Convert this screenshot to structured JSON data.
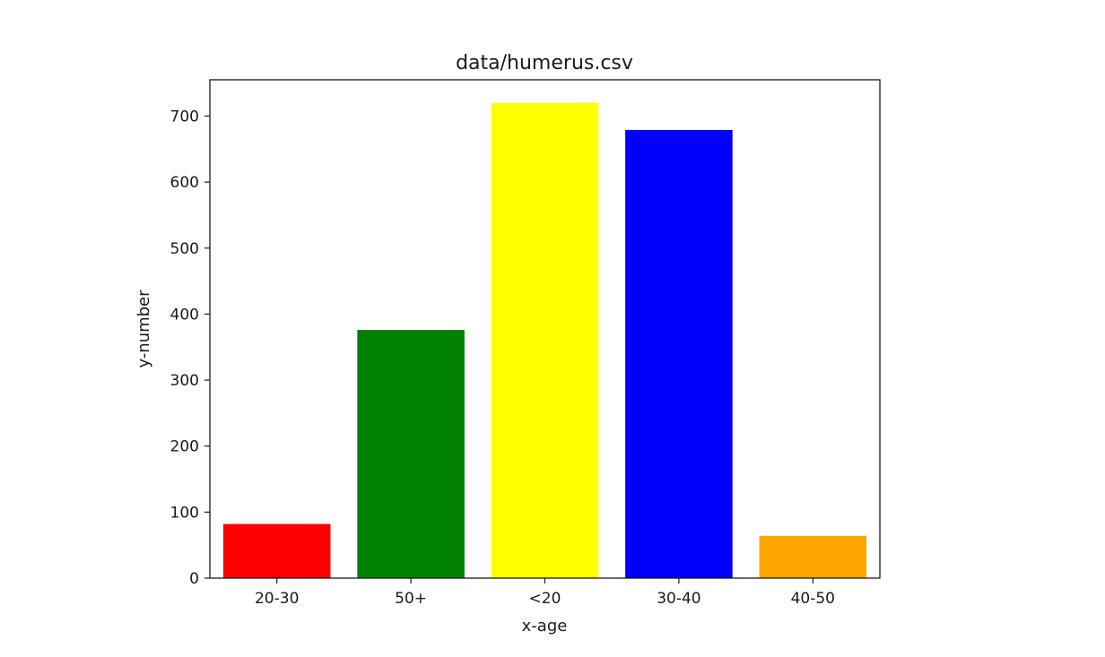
{
  "chart_data": {
    "type": "bar",
    "title": "data/humerus.csv",
    "xlabel": "x-age",
    "ylabel": "y-number",
    "categories": [
      "20-30",
      "50+",
      "<20",
      "30-40",
      "40-50"
    ],
    "values": [
      82,
      376,
      720,
      679,
      64
    ],
    "colors": [
      "#ff0000",
      "#008000",
      "#ffff00",
      "#0000ff",
      "#ffa500"
    ],
    "ylim": [
      0,
      755
    ],
    "yticks": [
      0,
      100,
      200,
      300,
      400,
      500,
      600,
      700
    ],
    "grid": false,
    "legend": "none"
  }
}
